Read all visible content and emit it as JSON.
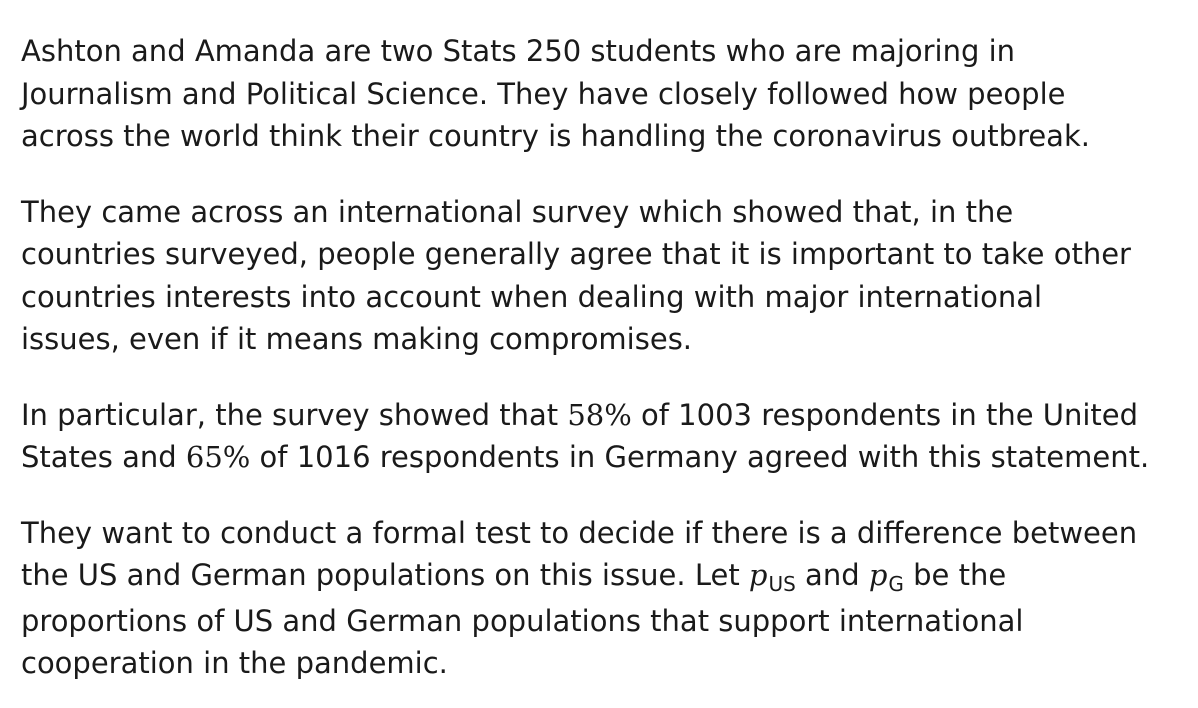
{
  "paragraphs": [
    {
      "lines": [
        "Ashton and Amanda are two Stats 250 students who are majoring in",
        "Journalism and Political Science. They have closely followed how people",
        "across the world think their country is handling the coronavirus outbreak."
      ]
    },
    {
      "lines": [
        "They came across an international survey which showed that, in the",
        "countries surveyed, people generally agree that it is important to take other",
        "countries interests into account when dealing with major international",
        "issues, even if it means making compromises."
      ]
    },
    {
      "line1": {
        "pre": "In particular, the survey showed that ",
        "pct_us": "58%",
        "post": " of 1003 respondents in the United"
      },
      "line2": {
        "pre": "States and ",
        "pct_g": "65%",
        "post": " of 1016 respondents in Germany agreed with this statement."
      }
    },
    {
      "line1": "They want to conduct a formal test to decide if there is a difference between",
      "line2": {
        "pre": "the US and German populations on this issue. Let ",
        "var1": "p",
        "sub1": "US",
        "mid": " and ",
        "var2": "p",
        "sub2": "G",
        "post": " be the"
      },
      "line3": "proportions of US and German populations that support international",
      "line4": "cooperation in the pandemic."
    }
  ]
}
